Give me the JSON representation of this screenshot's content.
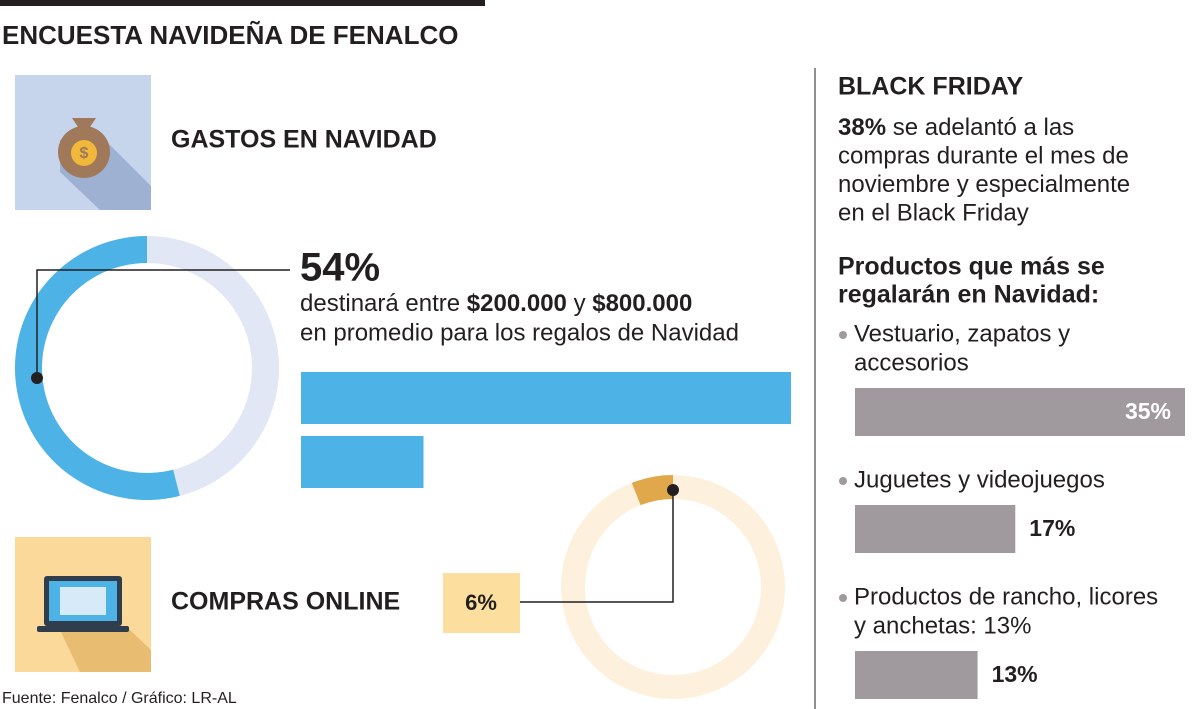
{
  "header": {
    "title": "ENCUESTA NAVIDEÑA DE FENALCO"
  },
  "spending": {
    "heading": "GASTOS EN NAVIDAD",
    "share": {
      "value": 54,
      "label": "54%"
    },
    "text_before": "destinará entre",
    "amounts": [
      {
        "value": 200000,
        "label": "$200.000"
      },
      {
        "value": 800000,
        "label": "$800.000"
      }
    ],
    "text_between": "y",
    "text_after": "en promedio para los regalos de Navidad",
    "color": "#4db3e6"
  },
  "online": {
    "heading": "COMPRAS ONLINE",
    "share": {
      "value": 6,
      "label": "6%"
    },
    "color": "#e0a84a"
  },
  "black_friday": {
    "heading": "BLACK FRIDAY",
    "lead": "38%",
    "lines": [
      "se adelantó a las",
      "compras durante el mes de",
      "noviembre y especialmente",
      "en el Black Friday"
    ]
  },
  "products": {
    "heading": [
      "Productos que más se",
      "regalarán en Navidad:"
    ],
    "color": "#a09a9e",
    "items": [
      {
        "label": [
          "Vestuario, zapatos y",
          "accesorios"
        ],
        "value": 35,
        "value_label": "35%"
      },
      {
        "label": [
          "Juguetes y videojuegos"
        ],
        "value": 17,
        "value_label": "17%"
      },
      {
        "label": [
          "Productos de rancho, licores",
          "y anchetas: 13%"
        ],
        "value": 13,
        "value_label": "13%"
      }
    ]
  },
  "footer": {
    "source": "Fuente: Fenalco / Gráfico: LR-AL"
  }
}
